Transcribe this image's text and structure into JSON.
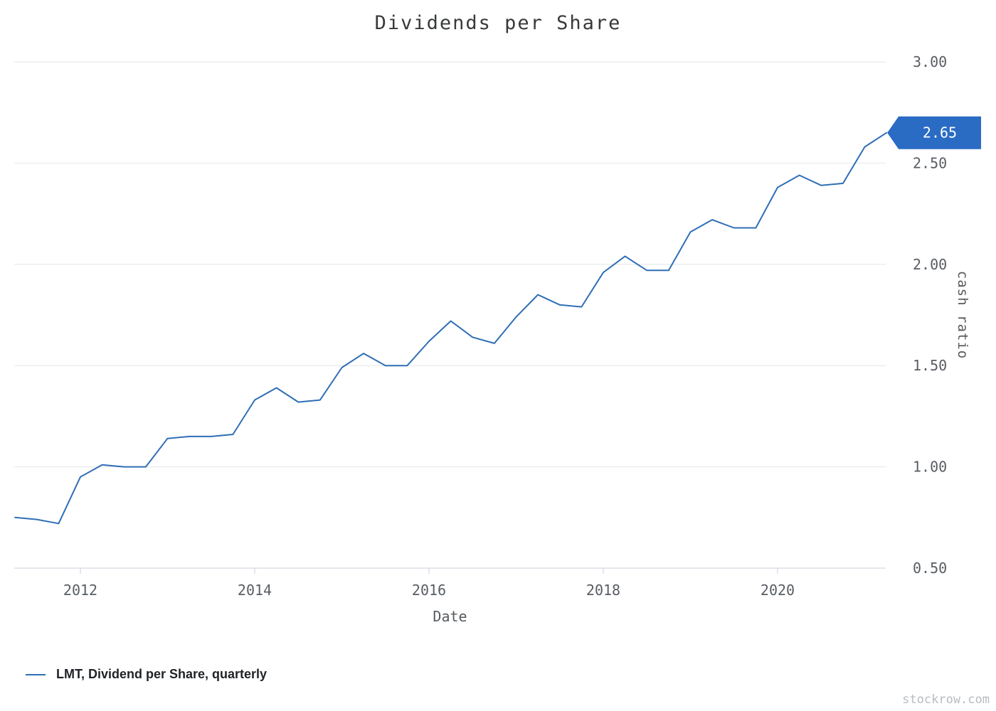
{
  "chart": {
    "title": "Dividends per Share",
    "x_axis_label": "Date",
    "y_axis_label": "cash ratio",
    "legend_label": "LMT, Dividend per Share, quarterly",
    "end_tag": "2.65"
  },
  "watermark": "stockrow.com",
  "colors": {
    "line": "#2f6eb6",
    "end_tag_bg": "#2a6bc4",
    "grid": "#e4e6e8",
    "axis": "#c7d0da",
    "tick_text": "#585d63"
  },
  "chart_data": {
    "type": "line",
    "title": "Dividends per Share",
    "xlabel": "Date",
    "ylabel": "cash ratio",
    "x_ticks": [
      2012,
      2014,
      2016,
      2018,
      2020
    ],
    "y_ticks": [
      0.5,
      1.0,
      1.5,
      2.0,
      2.5,
      3.0
    ],
    "y_tick_labels": [
      "0.50",
      "1.00",
      "1.50",
      "2.00",
      "2.50",
      "3.00"
    ],
    "xlim": [
      2011.2,
      2021.3
    ],
    "ylim": [
      0.5,
      3.0
    ],
    "grid": "horizontal",
    "legend_position": "bottom-left",
    "end_label": {
      "text": "2.65",
      "value": 2.65
    },
    "series": [
      {
        "name": "LMT, Dividend per Share, quarterly",
        "color": "#2f6eb6",
        "x": [
          2011.25,
          2011.5,
          2011.75,
          2012.0,
          2012.25,
          2012.5,
          2012.75,
          2013.0,
          2013.25,
          2013.5,
          2013.75,
          2014.0,
          2014.25,
          2014.5,
          2014.75,
          2015.0,
          2015.25,
          2015.5,
          2015.75,
          2016.0,
          2016.25,
          2016.5,
          2016.75,
          2017.0,
          2017.25,
          2017.5,
          2017.75,
          2018.0,
          2018.25,
          2018.5,
          2018.75,
          2019.0,
          2019.25,
          2019.5,
          2019.75,
          2020.0,
          2020.25,
          2020.5,
          2020.75,
          2021.0,
          2021.25
        ],
        "values": [
          0.75,
          0.74,
          0.72,
          0.95,
          1.01,
          1.0,
          1.0,
          1.14,
          1.15,
          1.15,
          1.16,
          1.33,
          1.39,
          1.32,
          1.33,
          1.49,
          1.56,
          1.5,
          1.5,
          1.62,
          1.72,
          1.64,
          1.61,
          1.74,
          1.85,
          1.8,
          1.79,
          1.96,
          2.04,
          1.97,
          1.97,
          2.16,
          2.22,
          2.18,
          2.18,
          2.38,
          2.44,
          2.39,
          2.4,
          2.58,
          2.65
        ]
      }
    ]
  }
}
